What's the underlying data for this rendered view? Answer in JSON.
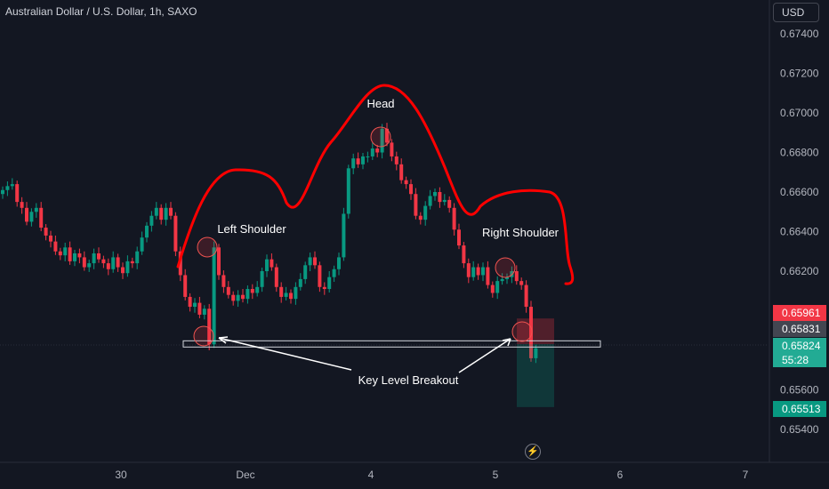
{
  "header": {
    "title": "Australian Dollar / U.S. Dollar, 1h, SAXO",
    "currency_button": "USD"
  },
  "price_tags": {
    "red": "0.65961",
    "grey": "0.65831",
    "teal_price": "0.65824",
    "teal_timer": "55:28",
    "green": "0.65513"
  },
  "icons": {
    "replay": "lightning-bolt-icon"
  },
  "colors": {
    "up": "#089981",
    "down": "#f23645",
    "annotation": "#ff0000",
    "background": "#131722"
  },
  "chart_data": {
    "type": "candlestick",
    "title": "Australian Dollar / U.S. Dollar, 1h, SAXO",
    "ylim": [
      0.6528,
      0.6756
    ],
    "y_ticks": [
      "0.67400",
      "0.67200",
      "0.67000",
      "0.66800",
      "0.66600",
      "0.66400",
      "0.66200",
      "0.65600",
      "0.65400"
    ],
    "x_ticks": [
      "30",
      "Dec",
      "4",
      "5",
      "6",
      "7"
    ],
    "candles_close": [
      0.6661,
      0.6663,
      0.6664,
      0.6655,
      0.6652,
      0.6645,
      0.665,
      0.6652,
      0.6642,
      0.6638,
      0.6635,
      0.663,
      0.6628,
      0.6632,
      0.6625,
      0.6629,
      0.6627,
      0.6622,
      0.6624,
      0.6629,
      0.6626,
      0.6624,
      0.6621,
      0.6627,
      0.6622,
      0.6619,
      0.6625,
      0.6624,
      0.663,
      0.6637,
      0.6643,
      0.6648,
      0.6652,
      0.6646,
      0.6652,
      0.6648,
      0.663,
      0.6618,
      0.6607,
      0.6602,
      0.6604,
      0.6598,
      0.6601,
      0.6583,
      0.6632,
      0.6618,
      0.6612,
      0.6608,
      0.6605,
      0.6608,
      0.6606,
      0.6611,
      0.6609,
      0.6612,
      0.662,
      0.6626,
      0.6622,
      0.6612,
      0.6607,
      0.6609,
      0.6606,
      0.6612,
      0.6616,
      0.6623,
      0.6627,
      0.6623,
      0.6612,
      0.6611,
      0.6617,
      0.6621,
      0.6627,
      0.6649,
      0.6672,
      0.6677,
      0.6674,
      0.6678,
      0.6678,
      0.6682,
      0.668,
      0.6692,
      0.6685,
      0.6678,
      0.6674,
      0.6666,
      0.6664,
      0.6659,
      0.6648,
      0.6646,
      0.6653,
      0.6658,
      0.666,
      0.6655,
      0.6656,
      0.6652,
      0.6641,
      0.6633,
      0.6624,
      0.6617,
      0.6622,
      0.6618,
      0.6622,
      0.6613,
      0.6609,
      0.6615,
      0.6616,
      0.6617,
      0.662,
      0.6615,
      0.6613,
      0.6602,
      0.6576,
      0.6581
    ],
    "candles_open": [
      0.6659,
      0.6661,
      0.6663,
      0.6664,
      0.6655,
      0.6652,
      0.6645,
      0.665,
      0.6652,
      0.6642,
      0.6638,
      0.6635,
      0.663,
      0.6628,
      0.6632,
      0.6625,
      0.6629,
      0.6627,
      0.6622,
      0.6624,
      0.6629,
      0.6626,
      0.6624,
      0.6621,
      0.6627,
      0.6622,
      0.6619,
      0.6625,
      0.6624,
      0.663,
      0.6637,
      0.6643,
      0.6648,
      0.6652,
      0.6646,
      0.6652,
      0.6648,
      0.663,
      0.6618,
      0.6607,
      0.6602,
      0.6604,
      0.6598,
      0.6601,
      0.6583,
      0.6632,
      0.6618,
      0.6612,
      0.6608,
      0.6605,
      0.6608,
      0.6606,
      0.6611,
      0.6609,
      0.6612,
      0.662,
      0.6626,
      0.6622,
      0.6612,
      0.6607,
      0.6609,
      0.6606,
      0.6612,
      0.6616,
      0.6623,
      0.6627,
      0.6623,
      0.6612,
      0.6611,
      0.6617,
      0.6621,
      0.6627,
      0.6649,
      0.6672,
      0.6677,
      0.6674,
      0.6678,
      0.6678,
      0.6682,
      0.668,
      0.6692,
      0.6685,
      0.6678,
      0.6674,
      0.6666,
      0.6664,
      0.6659,
      0.6648,
      0.6646,
      0.6653,
      0.6658,
      0.666,
      0.6655,
      0.6656,
      0.6652,
      0.6641,
      0.6633,
      0.6624,
      0.6617,
      0.6622,
      0.6618,
      0.6622,
      0.6613,
      0.6609,
      0.6615,
      0.6616,
      0.6617,
      0.662,
      0.6615,
      0.6613,
      0.6602,
      0.6576
    ],
    "annotations": [
      "Head",
      "Left Shoulder",
      "Right Shoulder",
      "Key Level Breakout"
    ],
    "key_level": 0.6583,
    "position": {
      "entry": 0.65831,
      "stop": 0.65961,
      "target": 0.65513
    }
  }
}
